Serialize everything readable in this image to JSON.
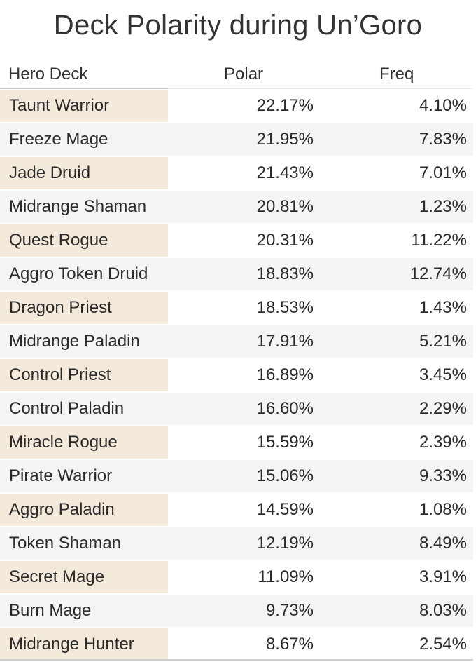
{
  "chart_data": {
    "type": "table",
    "title": "Deck Polarity during Un’Goro",
    "columns": [
      "Hero Deck",
      "Polar",
      "Freq"
    ],
    "rows": [
      {
        "deck": "Taunt Warrior",
        "polar": "22.17%",
        "freq": "4.10%"
      },
      {
        "deck": "Freeze Mage",
        "polar": "21.95%",
        "freq": "7.83%"
      },
      {
        "deck": "Jade Druid",
        "polar": "21.43%",
        "freq": "7.01%"
      },
      {
        "deck": "Midrange Shaman",
        "polar": "20.81%",
        "freq": "1.23%"
      },
      {
        "deck": "Quest Rogue",
        "polar": "20.31%",
        "freq": "11.22%"
      },
      {
        "deck": "Aggro Token Druid",
        "polar": "18.83%",
        "freq": "12.74%"
      },
      {
        "deck": "Dragon Priest",
        "polar": "18.53%",
        "freq": "1.43%"
      },
      {
        "deck": "Midrange Paladin",
        "polar": "17.91%",
        "freq": "5.21%"
      },
      {
        "deck": "Control Priest",
        "polar": "16.89%",
        "freq": "3.45%"
      },
      {
        "deck": "Control Paladin",
        "polar": "16.60%",
        "freq": "2.29%"
      },
      {
        "deck": "Miracle Rogue",
        "polar": "15.59%",
        "freq": "2.39%"
      },
      {
        "deck": "Pirate Warrior",
        "polar": "15.06%",
        "freq": "9.33%"
      },
      {
        "deck": "Aggro Paladin",
        "polar": "14.59%",
        "freq": "1.08%"
      },
      {
        "deck": "Token Shaman",
        "polar": "12.19%",
        "freq": "8.49%"
      },
      {
        "deck": "Secret Mage",
        "polar": "11.09%",
        "freq": "3.91%"
      },
      {
        "deck": "Burn Mage",
        "polar": "9.73%",
        "freq": "8.03%"
      },
      {
        "deck": "Midrange Hunter",
        "polar": "8.67%",
        "freq": "2.54%"
      }
    ]
  },
  "colors": {
    "name_cell_highlight": "#f4eadb",
    "row_band": "#f4f4f4",
    "text": "#2b2b2b"
  }
}
